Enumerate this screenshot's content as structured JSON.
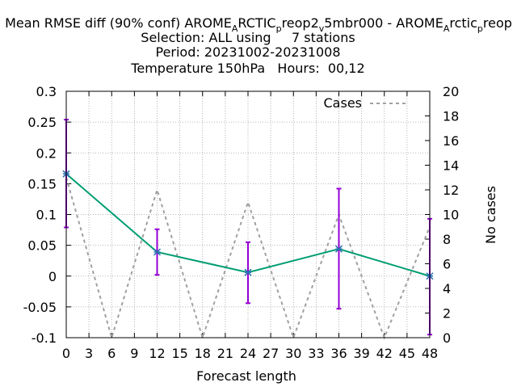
{
  "chart_data": {
    "type": "line",
    "title": {
      "line1": {
        "pre": "Mean RMSE diff (90% conf) AROME",
        "s1": "A",
        "t1": "RCTIC",
        "s2": "p",
        "t2": "reop2",
        "s3": "v",
        "t3": "5mbr000 - AROME",
        "s4": "A",
        "t4": "rctic",
        "s5": "p",
        "t5": "reop"
      },
      "line2": "Selection: ALL using     7 stations",
      "line3": "Period: 20231002-20231008",
      "line4": "Temperature 150hPa   Hours:  00,12"
    },
    "xlabel": "Forecast length",
    "ylabel": "",
    "y2label": "No cases",
    "xlim": [
      0,
      48
    ],
    "ylim": [
      -0.1,
      0.3
    ],
    "y2lim": [
      0,
      20
    ],
    "xticks": [
      "0",
      "3",
      "6",
      "9",
      "12",
      "15",
      "18",
      "21",
      "24",
      "27",
      "30",
      "33",
      "36",
      "39",
      "42",
      "45",
      "48"
    ],
    "yticks": [
      "-0.1",
      "-0.05",
      "0",
      "0.05",
      "0.1",
      "0.15",
      "0.2",
      "0.25",
      "0.3"
    ],
    "y2ticks": [
      "0",
      "2",
      "4",
      "6",
      "8",
      "10",
      "12",
      "14",
      "16",
      "18",
      "20"
    ],
    "grid": true,
    "legend_position": "top-right",
    "series": [
      {
        "name": "",
        "color": "#009e73",
        "axis": "y",
        "x": [
          0,
          12,
          24,
          36,
          48
        ],
        "y": [
          0.166,
          0.039,
          0.006,
          0.044,
          0.0
        ]
      },
      {
        "name": "Cases",
        "color": "#a0a0a0",
        "axis": "y2",
        "dashed": true,
        "x": [
          0,
          6,
          12,
          18,
          24,
          30,
          36,
          42,
          48
        ],
        "y": [
          13,
          0,
          12,
          0,
          11,
          0,
          10,
          0,
          9
        ]
      }
    ],
    "errorbars": {
      "color": "#9400d3",
      "x": [
        0,
        12,
        24,
        36,
        48
      ],
      "low": [
        0.079,
        0.002,
        -0.044,
        -0.053,
        -0.095
      ],
      "high": [
        0.254,
        0.076,
        0.055,
        0.142,
        0.093
      ]
    }
  }
}
